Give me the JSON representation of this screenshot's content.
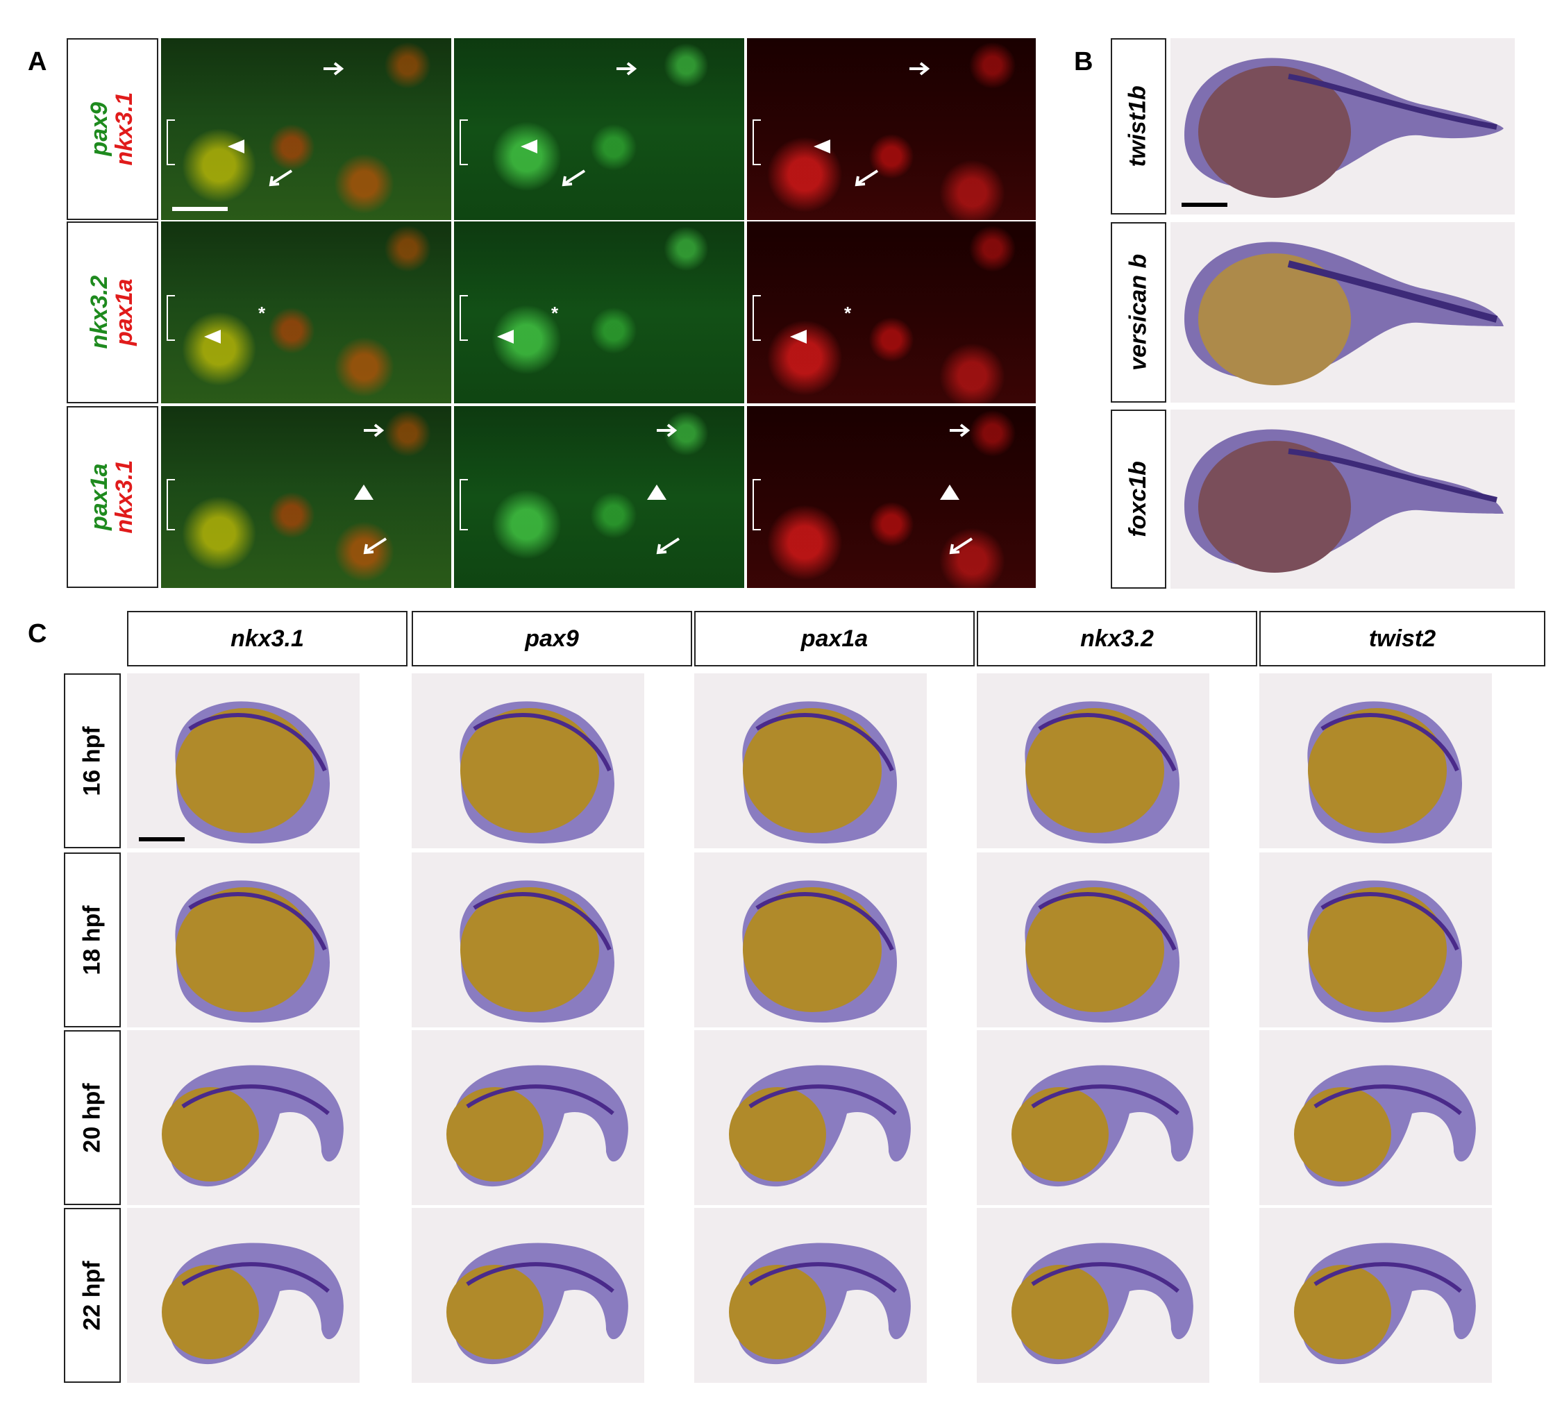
{
  "panels": {
    "a": "A",
    "b": "B",
    "c": "C"
  },
  "panel_a": {
    "rows": [
      {
        "green_gene": "pax9",
        "red_gene": "nkx3.1"
      },
      {
        "green_gene": "nkx3.2",
        "red_gene": "pax1a"
      },
      {
        "green_gene": "pax1a",
        "red_gene": "nkx3.1"
      }
    ],
    "asterisk": "*"
  },
  "panel_b": {
    "rows": [
      {
        "gene": "twist1b"
      },
      {
        "gene": "versican b"
      },
      {
        "gene": "foxc1b"
      }
    ]
  },
  "panel_c": {
    "columns": [
      "nkx3.1",
      "pax9",
      "pax1a",
      "nkx3.2",
      "twist2"
    ],
    "stages": [
      "16 hpf",
      "18 hpf",
      "20 hpf",
      "22 hpf"
    ]
  },
  "colors": {
    "green_label": "#1e8a1e",
    "red_label": "#e01b1b",
    "stain": "#4a2a8a",
    "yolk": "#b08a2a"
  }
}
